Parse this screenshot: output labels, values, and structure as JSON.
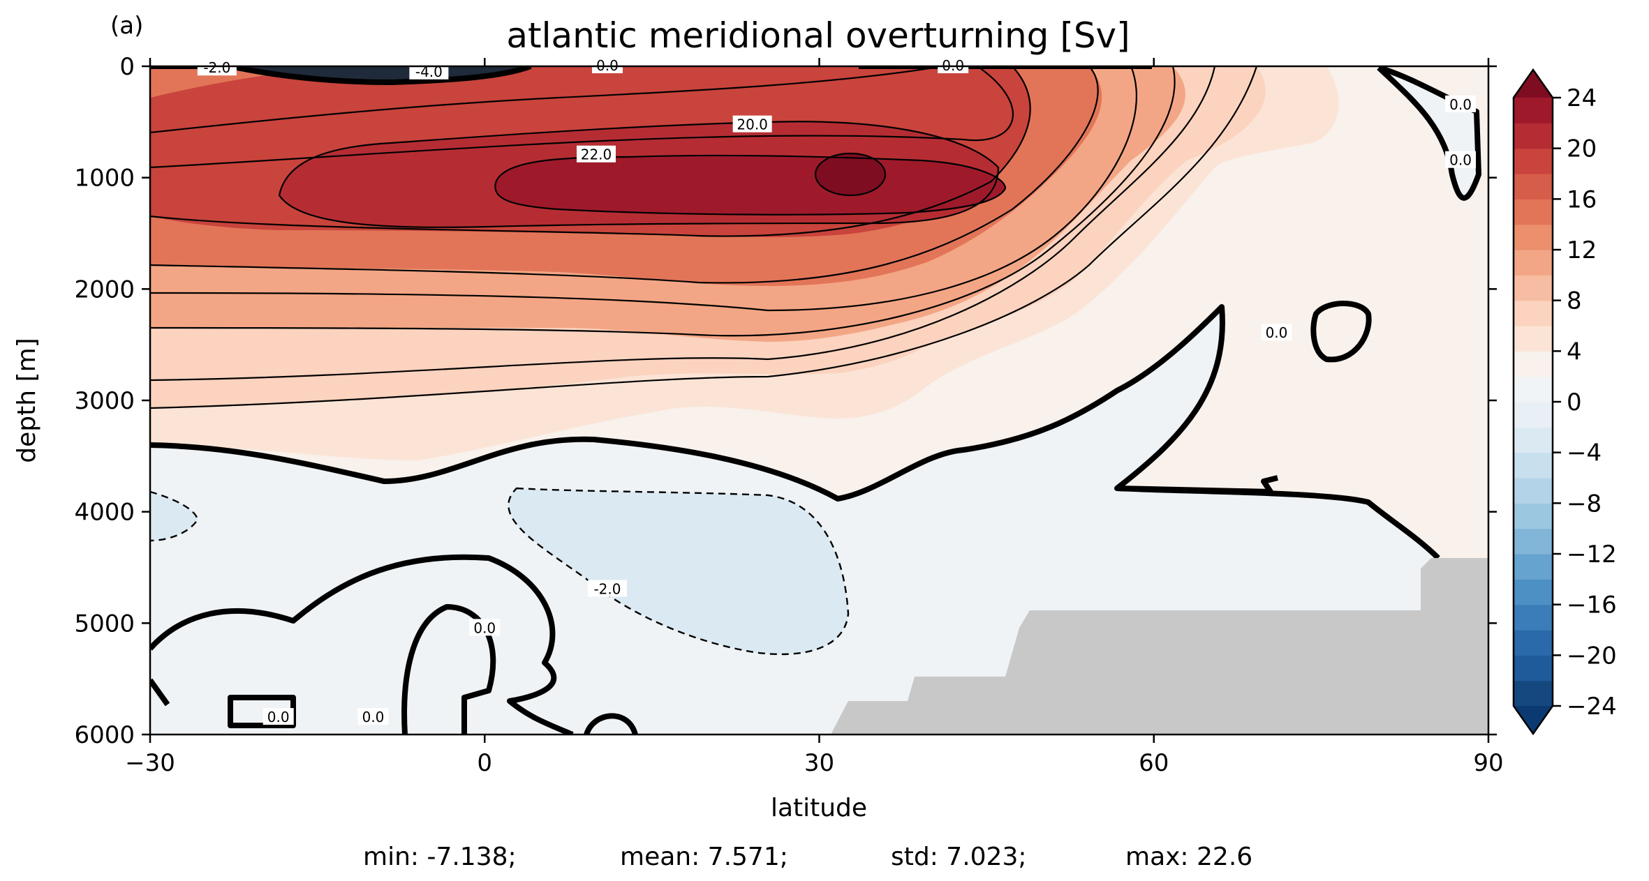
{
  "chart_data": {
    "type": "contour",
    "panel_label": "(a)",
    "title": "atlantic meridional overturning [Sv]",
    "xlabel": "latitude",
    "ylabel": "depth [m]",
    "xlim": [
      -30,
      90
    ],
    "ylim": [
      6000,
      0
    ],
    "x_ticks": [
      -30,
      0,
      30,
      60,
      90
    ],
    "x_tick_labels": [
      "−30",
      "0",
      "30",
      "60",
      "90"
    ],
    "y_ticks": [
      0,
      1000,
      2000,
      3000,
      4000,
      5000,
      6000
    ],
    "y_tick_labels": [
      "0",
      "1000",
      "2000",
      "3000",
      "4000",
      "5000",
      "6000"
    ],
    "colorbar": {
      "ticks": [
        24,
        20,
        16,
        12,
        8,
        4,
        0,
        -4,
        -8,
        -12,
        -16,
        -20,
        -24
      ],
      "tick_labels": [
        "24",
        "20",
        "16",
        "12",
        "8",
        "4",
        "0",
        "−4",
        "−8",
        "−12",
        "−16",
        "−20",
        "−24"
      ],
      "range": [
        -24,
        24
      ],
      "step": 2,
      "extend": "both",
      "colors": [
        "#0b3a73",
        "#15487f",
        "#1f5a9a",
        "#2a6aaa",
        "#3a7db8",
        "#4c90c4",
        "#66a3cf",
        "#81b6d9",
        "#9bc7e1",
        "#b3d3e8",
        "#c8dfee",
        "#dbe9f2",
        "#e8f0f6",
        "#f1f4f7",
        "#f8f1ec",
        "#fbe4d6",
        "#fbd3bf",
        "#f7bda2",
        "#f3a685",
        "#ec8f6c",
        "#e27558",
        "#d65d49",
        "#c9443c",
        "#b52d33",
        "#9e1a2b",
        "#7f0d22"
      ]
    },
    "contour_labels": [
      {
        "text": "-2.0",
        "x": -24,
        "y": 20
      },
      {
        "text": "-4.0",
        "x": -5,
        "y": 55
      },
      {
        "text": "0.0",
        "x": 11,
        "y": 0
      },
      {
        "text": "0.0",
        "x": 42,
        "y": 0
      },
      {
        "text": "20.0",
        "x": 24,
        "y": 530
      },
      {
        "text": "22.0",
        "x": 10,
        "y": 800
      },
      {
        "text": "0.0",
        "x": 87.5,
        "y": 350
      },
      {
        "text": "0.0",
        "x": 87.5,
        "y": 850
      },
      {
        "text": "0.0",
        "x": 71,
        "y": 2400
      },
      {
        "text": "-2.0",
        "x": 11,
        "y": 4700
      },
      {
        "text": "0.0",
        "x": 0,
        "y": 5050
      },
      {
        "text": "0.0",
        "x": -18.5,
        "y": 5850
      },
      {
        "text": "0.0",
        "x": -10,
        "y": 5850
      }
    ],
    "stats": {
      "min": "min: -7.138;",
      "mean": "mean: 7.571;",
      "std": "std: 7.023;",
      "max": "max: 22.6"
    },
    "land_color": "#c8c8c8"
  }
}
